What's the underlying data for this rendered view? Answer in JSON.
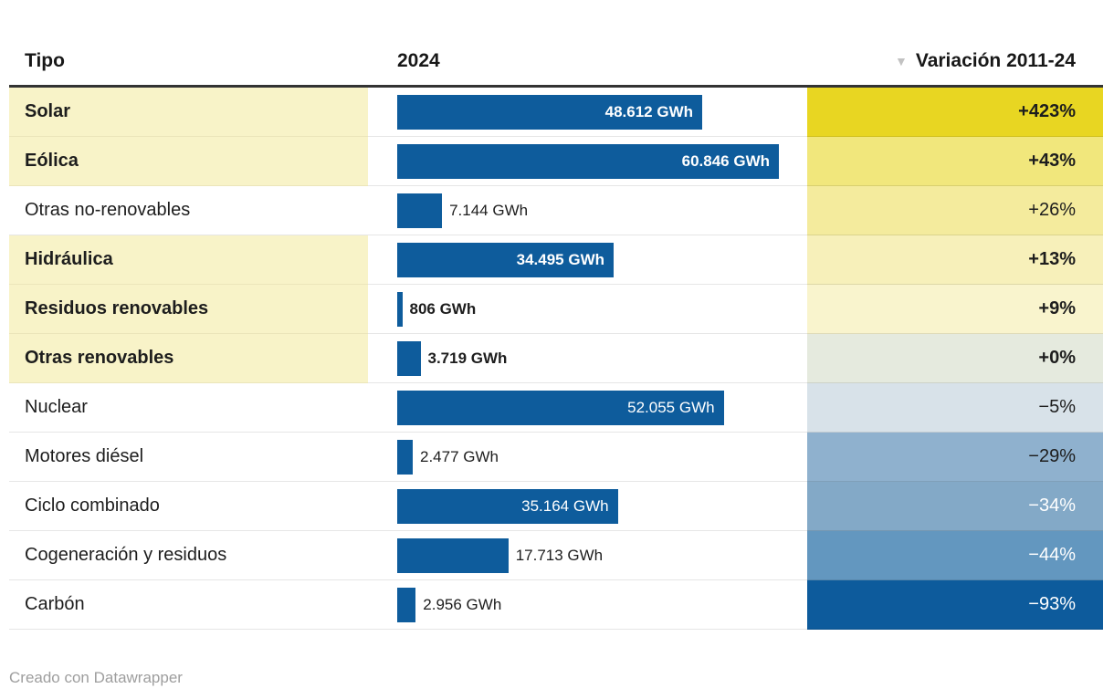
{
  "header": {
    "tipo_label": "Tipo",
    "year_label": "2024",
    "variation_label": "Variación 2011-24",
    "sort_icon": "triangle-down"
  },
  "footer": {
    "credit": "Creado con Datawrapper"
  },
  "colors": {
    "bar": "#0e5c9c",
    "highlight_row_bg": "#f8f3c8",
    "header_rule": "#333333",
    "text_dark": "#1d1d1d",
    "text_white": "#ffffff",
    "sort_icon_gray": "#c2c2c2",
    "credit_gray": "#9e9e9e"
  },
  "chart_data": {
    "type": "bar",
    "title": "",
    "unit": "GWh",
    "columns": [
      "Tipo",
      "2024",
      "Variación 2011-24"
    ],
    "max_value": 60846,
    "categories": [
      "Solar",
      "Eólica",
      "Otras no-renovables",
      "Hidráulica",
      "Residuos renovables",
      "Otras renovables",
      "Nuclear",
      "Motores diésel",
      "Ciclo combinado",
      "Cogeneración y residuos",
      "Carbón"
    ],
    "values": [
      48612,
      60846,
      7144,
      34495,
      806,
      3719,
      52055,
      2477,
      35164,
      17713,
      2956
    ],
    "variations": [
      "+423%",
      "+43%",
      "+26%",
      "+13%",
      "+9%",
      "+0%",
      "−5%",
      "−29%",
      "−34%",
      "−44%",
      "−93%"
    ],
    "rows": [
      {
        "tipo": "Solar",
        "value": 48612,
        "value_label": "48.612 GWh",
        "variation": "+423%",
        "emphasized": true,
        "variation_bg": "#e8d622",
        "variation_text": "#1d1d1d",
        "value_label_inside": true
      },
      {
        "tipo": "Eólica",
        "value": 60846,
        "value_label": "60.846 GWh",
        "variation": "+43%",
        "emphasized": true,
        "variation_bg": "#f1e77c",
        "variation_text": "#1d1d1d",
        "value_label_inside": true
      },
      {
        "tipo": "Otras no-renovables",
        "value": 7144,
        "value_label": "7.144 GWh",
        "variation": "+26%",
        "emphasized": false,
        "variation_bg": "#f4eb9d",
        "variation_text": "#1d1d1d",
        "value_label_inside": false
      },
      {
        "tipo": "Hidráulica",
        "value": 34495,
        "value_label": "34.495 GWh",
        "variation": "+13%",
        "emphasized": true,
        "variation_bg": "#f7f0ba",
        "variation_text": "#1d1d1d",
        "value_label_inside": true
      },
      {
        "tipo": "Residuos renovables",
        "value": 806,
        "value_label": "806 GWh",
        "variation": "+9%",
        "emphasized": true,
        "variation_bg": "#f9f4cd",
        "variation_text": "#1d1d1d",
        "value_label_inside": false
      },
      {
        "tipo": "Otras renovables",
        "value": 3719,
        "value_label": "3.719 GWh",
        "variation": "+0%",
        "emphasized": true,
        "variation_bg": "#e5eade",
        "variation_text": "#1d1d1d",
        "value_label_inside": false
      },
      {
        "tipo": "Nuclear",
        "value": 52055,
        "value_label": "52.055 GWh",
        "variation": "−5%",
        "emphasized": false,
        "variation_bg": "#d8e2e9",
        "variation_text": "#1d1d1d",
        "value_label_inside": true
      },
      {
        "tipo": "Motores diésel",
        "value": 2477,
        "value_label": "2.477 GWh",
        "variation": "−29%",
        "emphasized": false,
        "variation_bg": "#8fb1ce",
        "variation_text": "#1d1d1d",
        "value_label_inside": false
      },
      {
        "tipo": "Ciclo combinado",
        "value": 35164,
        "value_label": "35.164 GWh",
        "variation": "−34%",
        "emphasized": false,
        "variation_bg": "#83a9c7",
        "variation_text": "#ffffff",
        "value_label_inside": true
      },
      {
        "tipo": "Cogeneración y residuos",
        "value": 17713,
        "value_label": "17.713 GWh",
        "variation": "−44%",
        "emphasized": false,
        "variation_bg": "#6397bf",
        "variation_text": "#ffffff",
        "value_label_inside": false
      },
      {
        "tipo": "Carbón",
        "value": 2956,
        "value_label": "2.956 GWh",
        "variation": "−93%",
        "emphasized": false,
        "variation_bg": "#0d5b9c",
        "variation_text": "#ffffff",
        "value_label_inside": false
      }
    ]
  }
}
